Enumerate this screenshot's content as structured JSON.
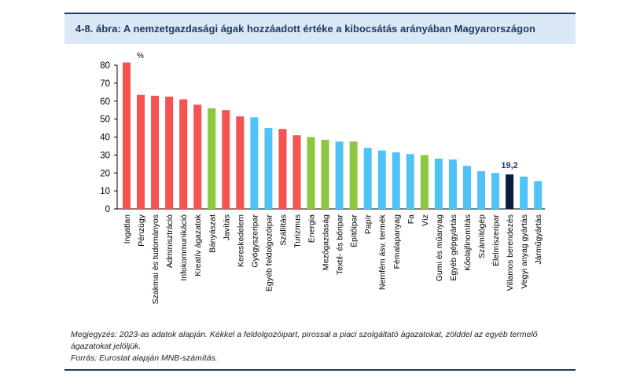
{
  "figure": {
    "title": "4-8. ábra: A nemzetgazdasági ágak hozzáadott értéke a kibocsátás arányában Magyarországon",
    "note": "Megjegyzés: 2023-as adatok alapján. Kékkel a feldolgozóipart, pirossal a piaci szolgáltató ágazatokat, zölddel az egyéb termelő ágazatokat jelöljük.",
    "source": "Forrás: Eurostat alapján MNB-számítás."
  },
  "colors": {
    "red": "#f4534f",
    "blue": "#4fc3f7",
    "green": "#8dc63f",
    "navy": "#0d1b3e",
    "title_text": "#1f3864",
    "title_bg": "#dbe9f6"
  },
  "chart_data": {
    "type": "bar",
    "unit_label": "%",
    "ylim": [
      0,
      80
    ],
    "yticks": [
      0,
      10,
      20,
      30,
      40,
      50,
      60,
      70,
      80
    ],
    "grid": false,
    "categories": [
      "Ingatlan",
      "Pénzügy",
      "Szakmai és tudományos",
      "Adminisztráció",
      "Infokommunikáció",
      "Kreatív ágazatok",
      "Bányászat",
      "Javítás",
      "Kereskedelem",
      "Gyógyszeripar",
      "Egyéb feldolgozóipar",
      "Szállítás",
      "Turizmus",
      "Energia",
      "Mezőgazdaság",
      "Textil- és bőripar",
      "Építőipar",
      "Papír",
      "Nemfém ásv. termék",
      "Fémalapanyag",
      "Fa",
      "Víz",
      "Gumi és műanyag",
      "Egyéb gépgyártás",
      "Kőolajfinomítás",
      "Számítógép",
      "Élelmiszeripar",
      "Villamos berendezés",
      "Vegyi anyag gyártás",
      "Járműgyártás"
    ],
    "values": [
      81.5,
      63.5,
      63,
      62.5,
      61,
      58,
      56,
      55,
      51.5,
      51,
      45,
      44.5,
      41,
      40,
      38.5,
      37.5,
      37.5,
      34,
      32.5,
      31.5,
      30.5,
      30,
      28,
      27.5,
      24,
      21,
      20,
      19.2,
      18,
      15.5
    ],
    "bar_colors": [
      "red",
      "red",
      "red",
      "red",
      "red",
      "red",
      "green",
      "red",
      "red",
      "blue",
      "blue",
      "red",
      "red",
      "green",
      "green",
      "blue",
      "green",
      "blue",
      "blue",
      "blue",
      "blue",
      "green",
      "blue",
      "blue",
      "blue",
      "blue",
      "blue",
      "navy",
      "blue",
      "blue"
    ],
    "annotations": [
      {
        "category": "Villamos berendezés",
        "text": "19,2"
      }
    ]
  }
}
